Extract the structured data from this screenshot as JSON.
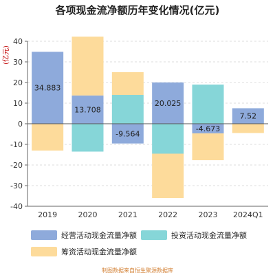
{
  "chart_data": {
    "type": "bar",
    "stacked": true,
    "title": "各项现金流净额历年变化情况(亿元)",
    "ylabel": "(亿元)",
    "ylim": [
      -40,
      40
    ],
    "yticks": [
      -40,
      -30,
      -20,
      -10,
      0,
      10,
      20,
      30,
      40
    ],
    "grid": true,
    "legend_position": "bottom",
    "categories": [
      "2019",
      "2020",
      "2021",
      "2022",
      "2023",
      "2024Q1"
    ],
    "series": [
      {
        "name": "经营活动现金流量净额",
        "color": "#8eaadb",
        "values": [
          34.883,
          13.708,
          -9.564,
          20.025,
          -4.673,
          7.52
        ],
        "labels": [
          "34.883",
          "13.708",
          "-9.564",
          "20.025",
          "-4.673",
          "7.52"
        ]
      },
      {
        "name": "投资活动现金流量净额",
        "color": "#86d6d8",
        "values": [
          0,
          -13.5,
          14.0,
          -14.5,
          19.0,
          0
        ]
      },
      {
        "name": "筹资活动现金流量净额",
        "color": "#fddb9b",
        "values": [
          -13.0,
          28.5,
          11.0,
          -21.5,
          -13.0,
          -4.5
        ]
      }
    ],
    "source": "制图数据来自恒生聚源数据库"
  }
}
